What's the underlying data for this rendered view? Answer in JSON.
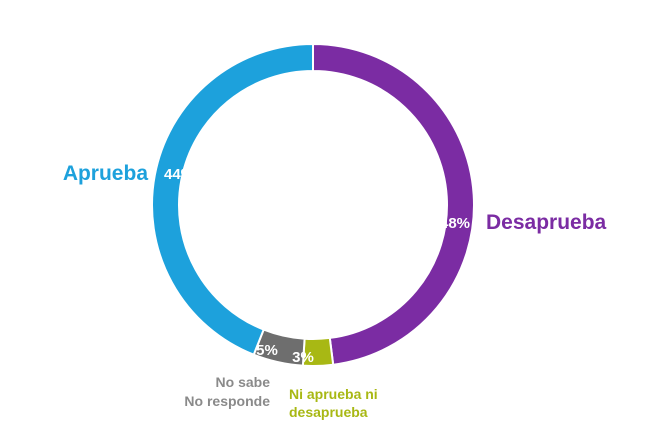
{
  "chart_data": {
    "type": "pie",
    "variant": "donut",
    "title": "",
    "slices": [
      {
        "key": "desaprueba",
        "label": "Desaprueba",
        "value": 48,
        "display": "48%",
        "color": "#7b2ca3"
      },
      {
        "key": "ni",
        "label": "Ni aprueba ni desaprueba",
        "label_lines": [
          "Ni aprueba ni",
          "desaprueba"
        ],
        "value": 3,
        "display": "3%",
        "color": "#a8b814"
      },
      {
        "key": "nosabe",
        "label": "No sabe No responde",
        "label_lines": [
          "No sabe",
          "No responde"
        ],
        "value": 5,
        "display": "5%",
        "color": "#6e6e6e"
      },
      {
        "key": "aprueba",
        "label": "Aprueba",
        "value": 44,
        "display": "44%",
        "color": "#1da1dc"
      }
    ]
  },
  "colors": {
    "label_nosabe": "#8a8a8a"
  }
}
